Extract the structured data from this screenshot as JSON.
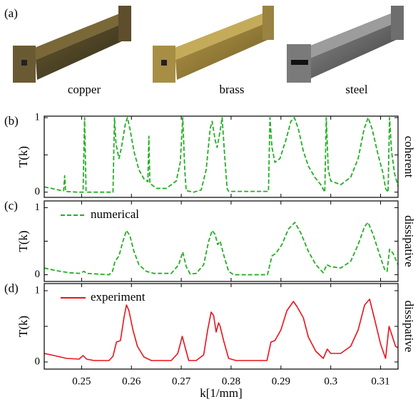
{
  "panel_a": {
    "label": "(a)",
    "samples": [
      "copper",
      "brass",
      "steel"
    ]
  },
  "chart_data": [
    {
      "type": "line",
      "panel_label": "(b)",
      "ylabel": "T(k)",
      "side_label": "coherent",
      "xlim": [
        0.2425,
        0.3135
      ],
      "xticks": [
        0.25,
        0.26,
        0.27,
        0.28,
        0.29,
        0.3,
        0.31
      ],
      "show_xtick_labels": false,
      "ylim": [
        -0.07,
        1.02
      ],
      "yticks": [
        0,
        1
      ],
      "minor_yticks": [
        0.5
      ],
      "x": [
        0.2425,
        0.244,
        0.246,
        0.2464,
        0.2466,
        0.2468,
        0.249,
        0.2503,
        0.2506,
        0.2509,
        0.2545,
        0.2563,
        0.2566,
        0.2569,
        0.2575,
        0.258,
        0.2588,
        0.2592,
        0.2597,
        0.2605,
        0.2615,
        0.2625,
        0.2633,
        0.2635,
        0.2637,
        0.265,
        0.267,
        0.269,
        0.2698,
        0.2703,
        0.2707,
        0.271,
        0.2725,
        0.274,
        0.275,
        0.2758,
        0.2762,
        0.2768,
        0.2772,
        0.2778,
        0.2782,
        0.2787,
        0.2792,
        0.2795,
        0.2875,
        0.2878,
        0.2882,
        0.2888,
        0.2898,
        0.291,
        0.292,
        0.2927,
        0.2935,
        0.2945,
        0.2955,
        0.2968,
        0.298,
        0.2988,
        0.2991,
        0.2995,
        0.3,
        0.302,
        0.304,
        0.3055,
        0.3067,
        0.3075,
        0.3083,
        0.3095,
        0.3105,
        0.311,
        0.3115,
        0.3118,
        0.3122,
        0.3128,
        0.3135
      ],
      "series": [
        {
          "color": "#22b022",
          "dash": true,
          "values": [
            0.07,
            0.05,
            0.02,
            0.02,
            0.22,
            0.01,
            0.0,
            0.0,
            1.0,
            0.0,
            0.0,
            0.0,
            1.0,
            0.65,
            0.45,
            0.6,
            0.92,
            1.0,
            0.85,
            0.55,
            0.3,
            0.18,
            0.14,
            0.75,
            0.12,
            0.05,
            0.05,
            0.15,
            0.4,
            1.0,
            0.3,
            0.02,
            0.0,
            0.03,
            0.3,
            0.85,
            0.95,
            0.7,
            0.6,
            0.82,
            1.0,
            0.5,
            0.05,
            0.01,
            0.01,
            1.0,
            0.6,
            0.4,
            0.45,
            0.7,
            0.95,
            1.0,
            0.85,
            0.55,
            0.35,
            0.2,
            0.1,
            0.0,
            1.0,
            0.3,
            0.15,
            0.1,
            0.2,
            0.45,
            0.85,
            1.0,
            0.85,
            0.5,
            0.25,
            0.05,
            0.0,
            1.0,
            0.55,
            0.25,
            0.08
          ]
        }
      ]
    },
    {
      "type": "line",
      "panel_label": "(c)",
      "ylabel": "T(k)",
      "side_label": "dissipative",
      "xlim": [
        0.2425,
        0.3135
      ],
      "xticks": [
        0.25,
        0.26,
        0.27,
        0.28,
        0.29,
        0.3,
        0.31
      ],
      "show_xtick_labels": false,
      "ylim": [
        -0.1,
        1.1
      ],
      "yticks": [
        0,
        1
      ],
      "minor_yticks": [
        0.5
      ],
      "x": [
        0.2425,
        0.245,
        0.2475,
        0.2495,
        0.2505,
        0.251,
        0.2555,
        0.2562,
        0.2567,
        0.2575,
        0.2583,
        0.259,
        0.2597,
        0.2605,
        0.2615,
        0.263,
        0.2645,
        0.268,
        0.2695,
        0.2703,
        0.271,
        0.2718,
        0.273,
        0.2745,
        0.2755,
        0.2762,
        0.2768,
        0.2773,
        0.2778,
        0.2785,
        0.2795,
        0.2805,
        0.2873,
        0.2882,
        0.289,
        0.2902,
        0.2915,
        0.2928,
        0.294,
        0.2955,
        0.297,
        0.2985,
        0.2992,
        0.3,
        0.302,
        0.304,
        0.3055,
        0.3068,
        0.3075,
        0.3085,
        0.3098,
        0.3108,
        0.3113,
        0.3118,
        0.3125,
        0.3135
      ],
      "series": [
        {
          "name": "numerical",
          "color": "#22b022",
          "dash": true,
          "values": [
            0.1,
            0.06,
            0.03,
            0.02,
            0.05,
            0.02,
            0.0,
            0.05,
            0.2,
            0.28,
            0.5,
            0.66,
            0.58,
            0.35,
            0.15,
            0.05,
            0.02,
            0.02,
            0.15,
            0.34,
            0.12,
            0.01,
            0.02,
            0.15,
            0.5,
            0.66,
            0.6,
            0.45,
            0.5,
            0.3,
            0.05,
            0.0,
            0.0,
            0.28,
            0.32,
            0.45,
            0.68,
            0.78,
            0.62,
            0.35,
            0.15,
            0.03,
            0.15,
            0.12,
            0.1,
            0.2,
            0.45,
            0.72,
            0.78,
            0.6,
            0.3,
            0.08,
            0.05,
            0.38,
            0.32,
            0.15
          ]
        }
      ]
    },
    {
      "type": "line",
      "panel_label": "(d)",
      "ylabel": "T(k)",
      "side_label": "dissipative",
      "xlabel": "k[1/mm]",
      "xlim": [
        0.2425,
        0.3135
      ],
      "xticks": [
        0.25,
        0.26,
        0.27,
        0.28,
        0.29,
        0.3,
        0.31
      ],
      "show_xtick_labels": true,
      "ylim": [
        -0.1,
        1.1
      ],
      "yticks": [
        0,
        1
      ],
      "minor_yticks": [
        0.5
      ],
      "x": [
        0.2425,
        0.2445,
        0.247,
        0.2495,
        0.2503,
        0.251,
        0.2525,
        0.2555,
        0.2563,
        0.257,
        0.2578,
        0.2585,
        0.259,
        0.2595,
        0.2603,
        0.2612,
        0.2625,
        0.264,
        0.268,
        0.2693,
        0.2702,
        0.2708,
        0.2715,
        0.273,
        0.2745,
        0.2753,
        0.276,
        0.2765,
        0.277,
        0.2775,
        0.2778,
        0.2785,
        0.2795,
        0.281,
        0.2872,
        0.288,
        0.2888,
        0.29,
        0.2912,
        0.2925,
        0.2932,
        0.2945,
        0.2955,
        0.297,
        0.2985,
        0.2993,
        0.3,
        0.302,
        0.304,
        0.3055,
        0.3068,
        0.3078,
        0.3088,
        0.31,
        0.311,
        0.3117,
        0.3124,
        0.313,
        0.3135
      ],
      "series": [
        {
          "name": "experiment",
          "color": "#e8141c",
          "dash": false,
          "values": [
            0.12,
            0.09,
            0.05,
            0.04,
            0.09,
            0.04,
            0.02,
            0.02,
            0.08,
            0.28,
            0.3,
            0.62,
            0.8,
            0.72,
            0.45,
            0.22,
            0.07,
            0.02,
            0.02,
            0.12,
            0.36,
            0.2,
            0.02,
            0.02,
            0.1,
            0.45,
            0.7,
            0.65,
            0.42,
            0.55,
            0.5,
            0.3,
            0.05,
            0.02,
            0.02,
            0.28,
            0.3,
            0.45,
            0.72,
            0.85,
            0.78,
            0.62,
            0.35,
            0.15,
            0.05,
            0.18,
            0.12,
            0.12,
            0.22,
            0.45,
            0.8,
            0.88,
            0.6,
            0.25,
            0.05,
            0.5,
            0.35,
            0.22,
            0.2
          ]
        }
      ]
    }
  ]
}
